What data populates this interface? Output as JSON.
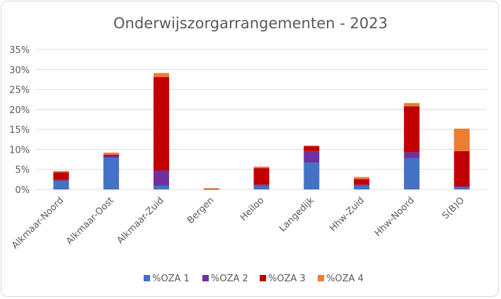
{
  "chart_data": {
    "type": "bar",
    "stacked": true,
    "title": "Onderwijszorgarrangementen  - 2023",
    "xlabel": "",
    "ylabel": "",
    "ylim": [
      0,
      35
    ],
    "ytick_labels": [
      "0%",
      "5%",
      "10%",
      "15%",
      "20%",
      "25%",
      "30%",
      "35%"
    ],
    "yticks": [
      0,
      5,
      10,
      15,
      20,
      25,
      30,
      35
    ],
    "grid": true,
    "legend_position": "bottom",
    "categories": [
      "Alkmaar-Noord",
      "Alkmaar-Oost",
      "Alkmaar-Zuid",
      "Bergen",
      "Heiloo",
      "Langedijk",
      "Hhw-Zuid",
      "Hhw-Noord",
      "S(B)O"
    ],
    "series": [
      {
        "name": "%OZA 1",
        "color": "#4472c4",
        "values": [
          2.2,
          7.9,
          0.9,
          0.0,
          0.9,
          6.7,
          0.9,
          7.8,
          0.5
        ]
      },
      {
        "name": "%OZA 2",
        "color": "#7030a0",
        "values": [
          0.2,
          0.5,
          3.8,
          0.0,
          0.3,
          2.9,
          0.3,
          1.5,
          0.3
        ]
      },
      {
        "name": "%OZA 3",
        "color": "#c00000",
        "values": [
          1.9,
          0.3,
          23.4,
          0.1,
          4.1,
          1.2,
          1.4,
          11.5,
          8.8
        ]
      },
      {
        "name": "%OZA 4",
        "color": "#ed7d31",
        "values": [
          0.3,
          0.5,
          1.0,
          0.2,
          0.4,
          0.2,
          0.5,
          0.8,
          5.6
        ]
      }
    ]
  }
}
